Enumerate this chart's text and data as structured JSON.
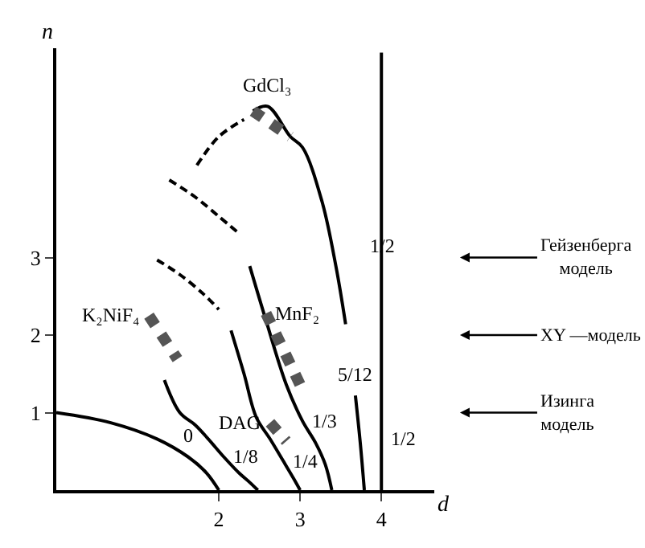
{
  "chart_data": {
    "type": "line",
    "xlabel": "d",
    "ylabel": "n",
    "xlim": [
      0,
      4.65
    ],
    "ylim": [
      0,
      5.7
    ],
    "xticks": [
      2,
      3,
      4
    ],
    "yticks": [
      1,
      2,
      3
    ],
    "marker": "none",
    "line_style": "solid",
    "series": [
      {
        "color": "#000000",
        "x": [
          0,
          0.67,
          1.24,
          1.62,
          1.85,
          2.0
        ],
        "values": [
          1,
          0.87,
          0.66,
          0.43,
          0.22,
          0
        ]
      },
      {
        "color": "#000000",
        "x": [
          1.33,
          1.52,
          1.71,
          1.87,
          2.06,
          2.25,
          2.38,
          2.48
        ],
        "values": [
          1.42,
          1.0,
          0.84,
          0.66,
          0.43,
          0.22,
          0.1,
          0
        ]
      },
      {
        "color": "#000000",
        "line_style": "dashed",
        "x": [
          1.24,
          1.52,
          1.81,
          2.0
        ],
        "values": [
          2.97,
          2.78,
          2.53,
          2.33
        ]
      },
      {
        "color": "#000000",
        "x": [
          2.15,
          2.31,
          2.46,
          2.63,
          2.79,
          2.92,
          3.0
        ],
        "values": [
          2.06,
          1.5,
          0.94,
          0.66,
          0.38,
          0.15,
          0
        ]
      },
      {
        "color": "#000000",
        "line_style": "dashed",
        "x": [
          1.39,
          1.71,
          2.0,
          2.25
        ],
        "values": [
          4.0,
          3.78,
          3.53,
          3.31
        ]
      },
      {
        "color": "#000000",
        "x": [
          2.38,
          2.58,
          2.83,
          3.03,
          3.19,
          3.31,
          3.39
        ],
        "values": [
          2.89,
          2.19,
          1.36,
          0.89,
          0.61,
          0.33,
          0
        ]
      },
      {
        "color": "#000000",
        "line_style": "dashed",
        "x": [
          1.73,
          2.0,
          2.31
        ],
        "values": [
          4.19,
          4.56,
          4.78
        ]
      },
      {
        "color": "#000000",
        "x": [
          2.42,
          2.6,
          2.88,
          3.03,
          3.27,
          3.44,
          3.56
        ],
        "values": [
          4.89,
          4.95,
          4.56,
          4.42,
          3.72,
          2.89,
          2.14
        ]
      },
      {
        "color": "#000000",
        "x": [
          3.68,
          3.74,
          3.79
        ],
        "values": [
          1.22,
          0.61,
          0
        ]
      },
      {
        "color": "#555555",
        "line_style": "dotted",
        "x": [
          1.14,
          1.49
        ],
        "values": [
          2.25,
          1.69
        ]
      },
      {
        "color": "#555555",
        "line_style": "dotted",
        "x": [
          2.63,
          2.83
        ],
        "values": [
          0.87,
          0.63
        ]
      },
      {
        "color": "#555555",
        "line_style": "dotted",
        "x": [
          2.58,
          3.0
        ],
        "values": [
          2.28,
          1.36
        ]
      },
      {
        "color": "#555555",
        "line_style": "dotted",
        "x": [
          2.42,
          2.88
        ],
        "values": [
          4.89,
          4.56
        ]
      }
    ],
    "ref_lines": [
      {
        "axis": "x",
        "value": 4,
        "color": "#000000"
      }
    ],
    "annotations": [
      {
        "text": "GdCl₃",
        "x": 2.6,
        "y": 4.95
      },
      {
        "text": "K₂NiF₄",
        "x": 1.14,
        "y": 2.25
      },
      {
        "text": "MnF₂",
        "x": 2.58,
        "y": 2.28
      },
      {
        "text": "DAG",
        "x": 2.63,
        "y": 0.87
      },
      {
        "text": "0",
        "x": 1.62,
        "y": 0.43
      },
      {
        "text": "1/8",
        "x": 2.06,
        "y": 0.43
      },
      {
        "text": "1/4",
        "x": 2.79,
        "y": 0.38
      },
      {
        "text": "1/3",
        "x": 3.03,
        "y": 0.89
      },
      {
        "text": "5/12",
        "x": 3.68,
        "y": 1.22
      },
      {
        "text": "1/2",
        "x": 4,
        "y": 2.89
      },
      {
        "text": "1/2",
        "x": 4,
        "y": 0.66
      },
      "Гейзенберга\nмодель",
      "XY —модель",
      "Изинга\nмодель"
    ]
  }
}
